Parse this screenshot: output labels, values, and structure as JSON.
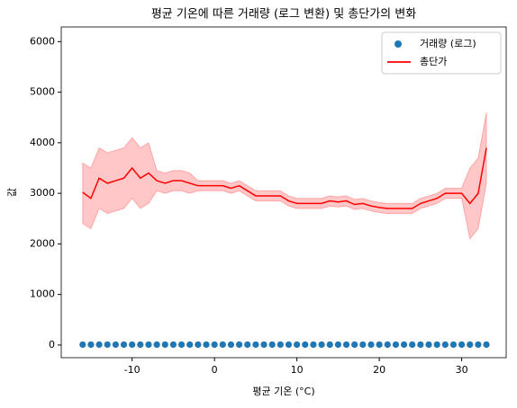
{
  "chart_data": {
    "type": "line",
    "title": "평균 기온에 따른 거래량 (로그 변환) 및 총단가의 변화",
    "x_label": "평균 기온 (°C)",
    "y_label": "값",
    "xlim": [
      -18.6,
      35.4
    ],
    "ylim": [
      -250,
      6290
    ],
    "xticks": [
      -10,
      0,
      10,
      20,
      30
    ],
    "yticks": [
      0,
      1000,
      2000,
      3000,
      4000,
      5000,
      6000
    ],
    "legend": "upper right",
    "series": [
      {
        "name": "거래량 (로그)",
        "type": "scatter",
        "color": "#1f77b4",
        "x": [
          -16,
          -15,
          -14,
          -13,
          -12,
          -11,
          -10,
          -9,
          -8,
          -7,
          -6,
          -5,
          -4,
          -3,
          -2,
          -1,
          0,
          1,
          2,
          3,
          4,
          5,
          6,
          7,
          8,
          9,
          10,
          11,
          12,
          13,
          14,
          15,
          16,
          17,
          18,
          19,
          20,
          21,
          22,
          23,
          24,
          25,
          26,
          27,
          28,
          29,
          30,
          31,
          32,
          33
        ],
        "values": [
          8,
          8,
          8,
          8,
          8,
          8,
          8,
          8,
          8,
          8,
          8,
          8,
          8,
          8,
          8,
          8,
          8,
          8,
          8,
          8,
          8,
          8,
          8,
          8,
          8,
          8,
          8,
          8,
          8,
          8,
          8,
          8,
          8,
          8,
          8,
          8,
          8,
          8,
          8,
          8,
          8,
          8,
          8,
          8,
          8,
          8,
          8,
          8,
          8,
          8
        ]
      },
      {
        "name": "총단가",
        "type": "line",
        "color": "#ff0000",
        "x": [
          -16,
          -15,
          -14,
          -13,
          -12,
          -11,
          -10,
          -9,
          -8,
          -7,
          -6,
          -5,
          -4,
          -3,
          -2,
          -1,
          0,
          1,
          2,
          3,
          4,
          5,
          6,
          7,
          8,
          9,
          10,
          11,
          12,
          13,
          14,
          15,
          16,
          17,
          18,
          19,
          20,
          21,
          22,
          23,
          24,
          25,
          26,
          27,
          28,
          29,
          30,
          31,
          32,
          33
        ],
        "values": [
          3020,
          2900,
          3300,
          3200,
          3250,
          3300,
          3500,
          3300,
          3400,
          3250,
          3200,
          3250,
          3250,
          3200,
          3150,
          3150,
          3150,
          3150,
          3100,
          3150,
          3050,
          2950,
          2950,
          2950,
          2950,
          2850,
          2800,
          2800,
          2800,
          2800,
          2850,
          2830,
          2850,
          2780,
          2800,
          2750,
          2720,
          2700,
          2700,
          2700,
          2700,
          2800,
          2850,
          2900,
          3000,
          3000,
          3000,
          2800,
          3000,
          3900
        ],
        "lower": [
          2400,
          2300,
          2700,
          2600,
          2650,
          2700,
          2900,
          2700,
          2800,
          3050,
          3000,
          3050,
          3050,
          3000,
          3050,
          3050,
          3050,
          3050,
          3000,
          3050,
          2950,
          2850,
          2850,
          2850,
          2850,
          2750,
          2700,
          2700,
          2700,
          2700,
          2750,
          2730,
          2750,
          2680,
          2700,
          2650,
          2620,
          2600,
          2600,
          2600,
          2600,
          2700,
          2750,
          2800,
          2900,
          2900,
          2900,
          2100,
          2300,
          3200
        ],
        "upper": [
          3600,
          3500,
          3900,
          3800,
          3850,
          3900,
          4100,
          3900,
          4000,
          3450,
          3400,
          3450,
          3450,
          3400,
          3250,
          3250,
          3250,
          3250,
          3200,
          3250,
          3150,
          3050,
          3050,
          3050,
          3050,
          2950,
          2900,
          2900,
          2900,
          2900,
          2950,
          2930,
          2950,
          2880,
          2900,
          2850,
          2820,
          2800,
          2800,
          2800,
          2800,
          2900,
          2950,
          3000,
          3100,
          3100,
          3100,
          3500,
          3700,
          4600
        ]
      }
    ]
  }
}
